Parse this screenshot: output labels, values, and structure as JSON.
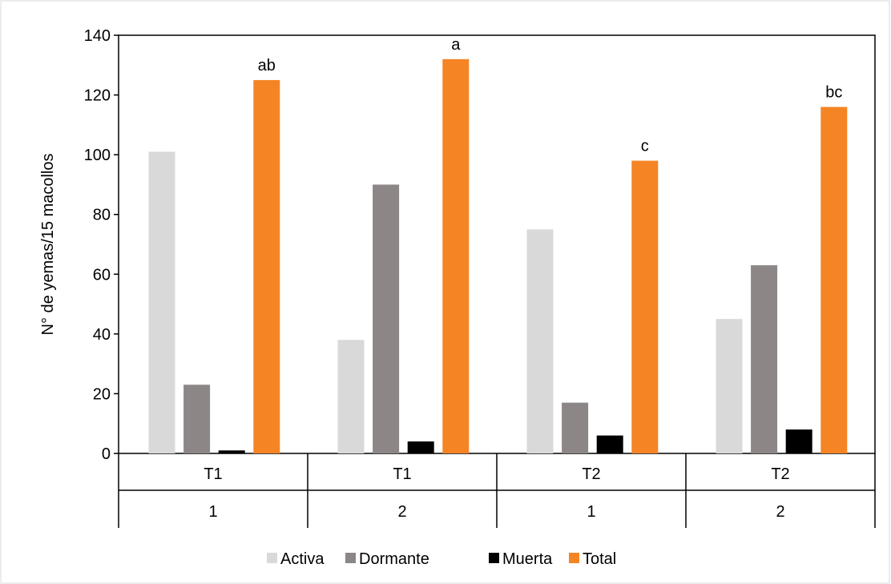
{
  "chart_data": {
    "type": "bar",
    "title": "",
    "xlabel": "",
    "ylabel": "N° de yemas/15 macollos",
    "ylim": [
      0,
      140
    ],
    "yticks": [
      0,
      20,
      40,
      60,
      80,
      100,
      120,
      140
    ],
    "grid": false,
    "legend_position": "bottom",
    "categories": [
      {
        "level1": "T1",
        "level2": "1"
      },
      {
        "level1": "T1",
        "level2": "2"
      },
      {
        "level1": "T2",
        "level2": "1"
      },
      {
        "level1": "T2",
        "level2": "2"
      }
    ],
    "series": [
      {
        "name": "Activa",
        "color": "#d9d9d9",
        "values": [
          101,
          38,
          75,
          45
        ]
      },
      {
        "name": "Dormante",
        "color": "#8c8786",
        "values": [
          23,
          90,
          17,
          63
        ]
      },
      {
        "name": "Muerta",
        "color": "#000000",
        "values": [
          1,
          4,
          6,
          8
        ]
      },
      {
        "name": "Total",
        "color": "#f58425",
        "values": [
          125,
          132,
          98,
          116
        ],
        "labels": [
          "ab",
          "a",
          "c",
          "bc"
        ]
      }
    ]
  }
}
